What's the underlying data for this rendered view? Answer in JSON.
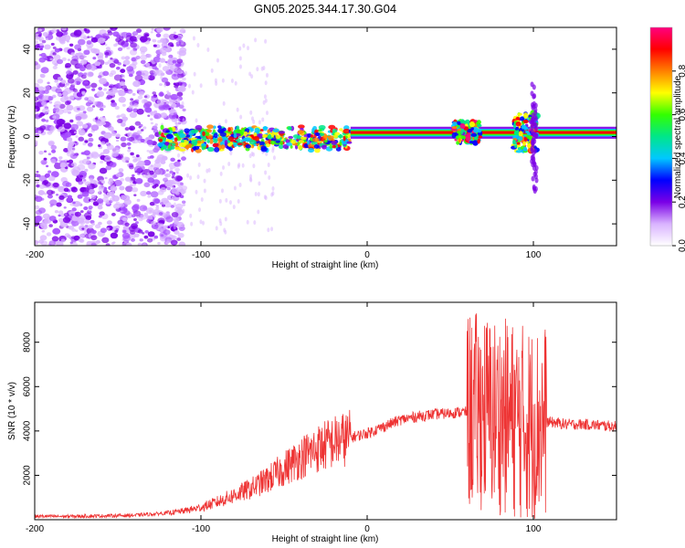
{
  "figure_title": "GN05.2025.344.17.30.G04",
  "chart_data": [
    {
      "type": "heatmap",
      "title": "GN05.2025.344.17.30.G04",
      "xlabel": "Height of straight line (km)",
      "ylabel": "Frequency (Hz)",
      "xlim": [
        -200,
        150
      ],
      "ylim": [
        -50,
        50
      ],
      "x_ticks": [
        -200,
        -100,
        0,
        100
      ],
      "y_ticks": [
        -40,
        -20,
        0,
        20,
        40
      ],
      "colorbar": {
        "label": "Normalized spectral amplitude",
        "range": [
          0,
          1
        ],
        "ticks": [
          0.0,
          0.2,
          0.4,
          0.6,
          0.8
        ],
        "colors": [
          "#ffffff",
          "#d9b3ff",
          "#7a00e6",
          "#0000ff",
          "#00c8ff",
          "#00e68a",
          "#33ff00",
          "#ffff00",
          "#ff8000",
          "#ff0000",
          "#ff0080"
        ]
      },
      "features": {
        "dominant_frequency_hz": 2,
        "noise_region_km": [
          -200,
          -125
        ],
        "scattered_region_km": [
          -125,
          -10
        ],
        "stable_region_km": [
          -10,
          150
        ],
        "disturbances_km": [
          [
            52,
            68
          ],
          [
            88,
            103
          ]
        ]
      }
    },
    {
      "type": "line",
      "xlabel": "Height of straight line (km)",
      "ylabel": "SNR (10 * v/v)",
      "xlim": [
        -200,
        150
      ],
      "ylim": [
        0,
        9800
      ],
      "x_ticks": [
        -200,
        -100,
        0,
        100
      ],
      "y_ticks": [
        2000,
        4000,
        6000,
        8000
      ],
      "color": "#ee3333",
      "series": [
        {
          "name": "SNR",
          "x": [
            -200,
            -180,
            -160,
            -140,
            -130,
            -120,
            -110,
            -100,
            -90,
            -80,
            -70,
            -60,
            -50,
            -40,
            -30,
            -20,
            -10,
            0,
            10,
            20,
            30,
            40,
            50,
            55,
            60,
            62,
            65,
            70,
            75,
            80,
            85,
            90,
            95,
            100,
            105,
            110,
            115,
            120,
            130,
            140,
            150
          ],
          "values": [
            150,
            150,
            170,
            200,
            250,
            300,
            400,
            550,
            800,
            1100,
            1400,
            1800,
            2300,
            2800,
            3200,
            3500,
            3700,
            3900,
            4200,
            4500,
            4650,
            4750,
            4800,
            4850,
            4850,
            4900,
            4900,
            4900,
            4800,
            4700,
            4600,
            4500,
            4400,
            4300,
            4400,
            4400,
            4350,
            4300,
            4300,
            4250,
            4200
          ]
        }
      ]
    }
  ]
}
